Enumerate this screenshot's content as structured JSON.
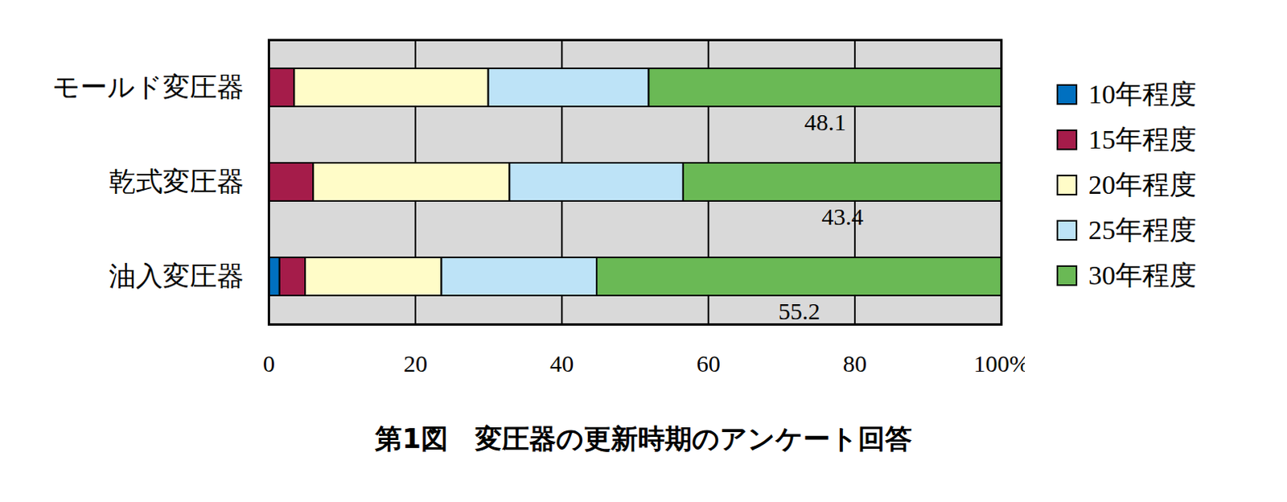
{
  "chart_data": {
    "type": "bar",
    "orientation": "horizontal",
    "stacked": true,
    "title": "第1図　変圧器の更新時期のアンケート回答",
    "categories": [
      "モールド変圧器",
      "乾式変圧器",
      "油入変圧器"
    ],
    "series": [
      {
        "name": "10年程度",
        "color": "#0070c0",
        "values": [
          0,
          0,
          1.5
        ]
      },
      {
        "name": "15年程度",
        "color": "#a51c4a",
        "values": [
          3.5,
          6.1,
          3.5
        ]
      },
      {
        "name": "20年程度",
        "color": "#fffcc8",
        "values": [
          26.5,
          26.8,
          18.6
        ]
      },
      {
        "name": "25年程度",
        "color": "#bde3f7",
        "values": [
          21.9,
          23.7,
          21.2
        ]
      },
      {
        "name": "30年程度",
        "color": "#6ab955",
        "values": [
          48.1,
          43.4,
          55.2
        ],
        "data_labels": true
      }
    ],
    "xlim": [
      0,
      100
    ],
    "xticks": [
      0,
      20,
      40,
      60,
      80,
      {
        "value": 100,
        "label": "100%"
      }
    ],
    "grid": true,
    "legend": "right"
  }
}
